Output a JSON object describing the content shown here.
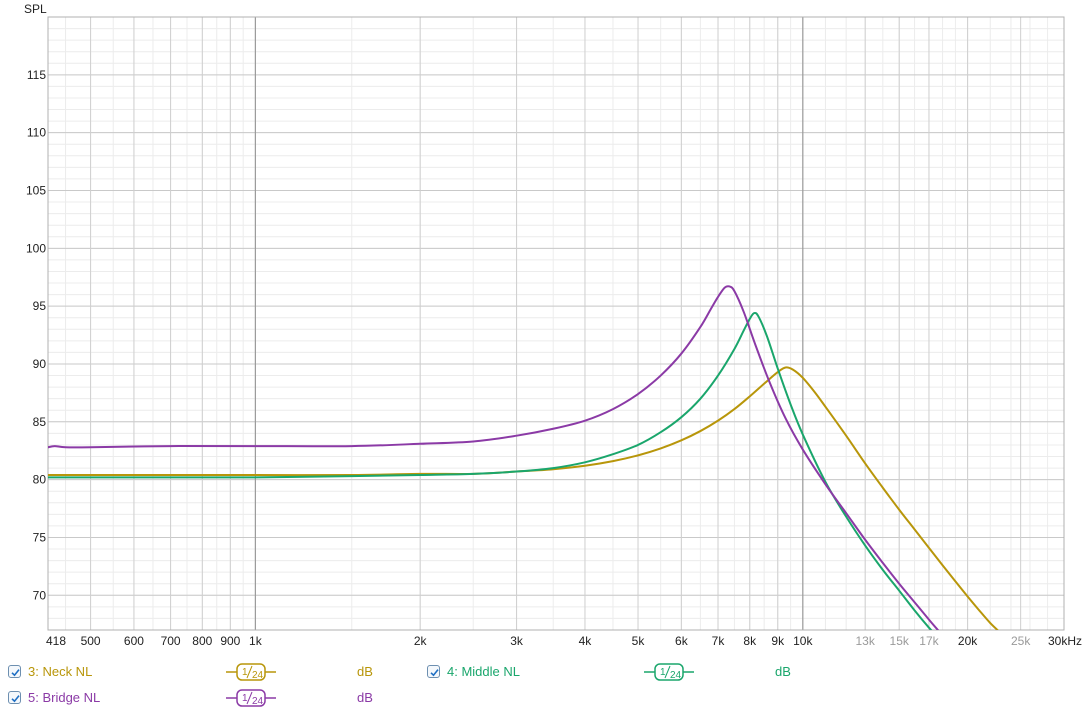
{
  "chart_data": {
    "type": "line",
    "ylabel": "SPL",
    "xunit": "kHz",
    "xscale": "log",
    "xlim": [
      418,
      30000
    ],
    "ylim": [
      67,
      120
    ],
    "yticks": [
      70,
      75,
      80,
      85,
      90,
      95,
      100,
      105,
      110,
      115
    ],
    "xticks": [
      {
        "value": 418,
        "label": "418",
        "muted": false
      },
      {
        "value": 500,
        "label": "500",
        "muted": false
      },
      {
        "value": 600,
        "label": "600",
        "muted": false
      },
      {
        "value": 700,
        "label": "700",
        "muted": false
      },
      {
        "value": 800,
        "label": "800",
        "muted": false
      },
      {
        "value": 900,
        "label": "900",
        "muted": false
      },
      {
        "value": 1000,
        "label": "1k",
        "muted": false
      },
      {
        "value": 2000,
        "label": "2k",
        "muted": false
      },
      {
        "value": 3000,
        "label": "3k",
        "muted": false
      },
      {
        "value": 4000,
        "label": "4k",
        "muted": false
      },
      {
        "value": 5000,
        "label": "5k",
        "muted": false
      },
      {
        "value": 6000,
        "label": "6k",
        "muted": false
      },
      {
        "value": 7000,
        "label": "7k",
        "muted": false
      },
      {
        "value": 8000,
        "label": "8k",
        "muted": false
      },
      {
        "value": 9000,
        "label": "9k",
        "muted": false
      },
      {
        "value": 10000,
        "label": "10k",
        "muted": false
      },
      {
        "value": 13000,
        "label": "13k",
        "muted": true
      },
      {
        "value": 15000,
        "label": "15k",
        "muted": true
      },
      {
        "value": 17000,
        "label": "17k",
        "muted": true
      },
      {
        "value": 20000,
        "label": "20k",
        "muted": false
      },
      {
        "value": 25000,
        "label": "25k",
        "muted": true
      },
      {
        "value": 30000,
        "label": "30kHz",
        "muted": false
      }
    ],
    "grid": true,
    "series": [
      {
        "name": "3: Neck NL",
        "color": "#b8960a",
        "points": [
          [
            418,
            80.4
          ],
          [
            500,
            80.4
          ],
          [
            700,
            80.4
          ],
          [
            1000,
            80.4
          ],
          [
            1500,
            80.4
          ],
          [
            2000,
            80.5
          ],
          [
            2500,
            80.5
          ],
          [
            3000,
            80.7
          ],
          [
            3500,
            80.9
          ],
          [
            4000,
            81.2
          ],
          [
            4500,
            81.6
          ],
          [
            5000,
            82.1
          ],
          [
            5500,
            82.7
          ],
          [
            6000,
            83.4
          ],
          [
            6500,
            84.2
          ],
          [
            7000,
            85.1
          ],
          [
            7500,
            86.1
          ],
          [
            8000,
            87.2
          ],
          [
            8500,
            88.3
          ],
          [
            9000,
            89.3
          ],
          [
            9300,
            89.7
          ],
          [
            9600,
            89.5
          ],
          [
            10000,
            88.8
          ],
          [
            10500,
            87.6
          ],
          [
            11000,
            86.3
          ],
          [
            12000,
            83.8
          ],
          [
            13000,
            81.4
          ],
          [
            14000,
            79.3
          ],
          [
            15000,
            77.4
          ],
          [
            16000,
            75.7
          ],
          [
            17000,
            74.1
          ],
          [
            18000,
            72.6
          ],
          [
            19000,
            71.2
          ],
          [
            20000,
            69.9
          ],
          [
            21000,
            68.7
          ],
          [
            22000,
            67.6
          ],
          [
            22800,
            66.9
          ]
        ]
      },
      {
        "name": "4: Middle NL",
        "color": "#1aa66c",
        "points": [
          [
            418,
            80.2
          ],
          [
            500,
            80.2
          ],
          [
            700,
            80.2
          ],
          [
            1000,
            80.2
          ],
          [
            1500,
            80.3
          ],
          [
            2000,
            80.4
          ],
          [
            2500,
            80.5
          ],
          [
            3000,
            80.7
          ],
          [
            3500,
            81.0
          ],
          [
            4000,
            81.5
          ],
          [
            4500,
            82.2
          ],
          [
            5000,
            83.0
          ],
          [
            5500,
            84.1
          ],
          [
            6000,
            85.4
          ],
          [
            6500,
            87.0
          ],
          [
            7000,
            89.0
          ],
          [
            7500,
            91.3
          ],
          [
            7800,
            92.9
          ],
          [
            8000,
            93.9
          ],
          [
            8150,
            94.4
          ],
          [
            8300,
            94.1
          ],
          [
            8600,
            92.4
          ],
          [
            9000,
            89.6
          ],
          [
            9500,
            86.5
          ],
          [
            10000,
            83.9
          ],
          [
            11000,
            79.8
          ],
          [
            12000,
            76.8
          ],
          [
            13000,
            74.3
          ],
          [
            14000,
            72.2
          ],
          [
            15000,
            70.4
          ],
          [
            16000,
            68.7
          ],
          [
            17000,
            67.2
          ],
          [
            17400,
            66.7
          ]
        ]
      },
      {
        "name": "5: Bridge NL",
        "color": "#8b3aa6",
        "points": [
          [
            418,
            82.8
          ],
          [
            430,
            82.9
          ],
          [
            450,
            82.8
          ],
          [
            500,
            82.8
          ],
          [
            700,
            82.9
          ],
          [
            1000,
            82.9
          ],
          [
            1500,
            82.9
          ],
          [
            2000,
            83.1
          ],
          [
            2500,
            83.3
          ],
          [
            3000,
            83.8
          ],
          [
            3500,
            84.4
          ],
          [
            4000,
            85.1
          ],
          [
            4500,
            86.1
          ],
          [
            5000,
            87.4
          ],
          [
            5500,
            89.0
          ],
          [
            6000,
            90.9
          ],
          [
            6500,
            93.2
          ],
          [
            6800,
            94.8
          ],
          [
            7000,
            95.8
          ],
          [
            7200,
            96.6
          ],
          [
            7350,
            96.7
          ],
          [
            7500,
            96.3
          ],
          [
            7800,
            94.5
          ],
          [
            8200,
            91.6
          ],
          [
            8700,
            88.4
          ],
          [
            9300,
            85.3
          ],
          [
            10000,
            82.6
          ],
          [
            11000,
            79.6
          ],
          [
            12000,
            77.1
          ],
          [
            13000,
            74.8
          ],
          [
            14000,
            72.8
          ],
          [
            15000,
            71.0
          ],
          [
            16000,
            69.4
          ],
          [
            17000,
            67.9
          ],
          [
            17500,
            67.2
          ],
          [
            17800,
            66.8
          ]
        ]
      }
    ]
  },
  "legend": [
    {
      "label": "3: Neck NL",
      "smoothing": "1/24",
      "unit": "dB",
      "color": "#b8960a",
      "checked": true
    },
    {
      "label": "4: Middle NL",
      "smoothing": "1/24",
      "unit": "dB",
      "color": "#1aa66c",
      "checked": true
    },
    {
      "label": "5: Bridge NL",
      "smoothing": "1/24",
      "unit": "dB",
      "color": "#8b3aa6",
      "checked": true
    }
  ]
}
